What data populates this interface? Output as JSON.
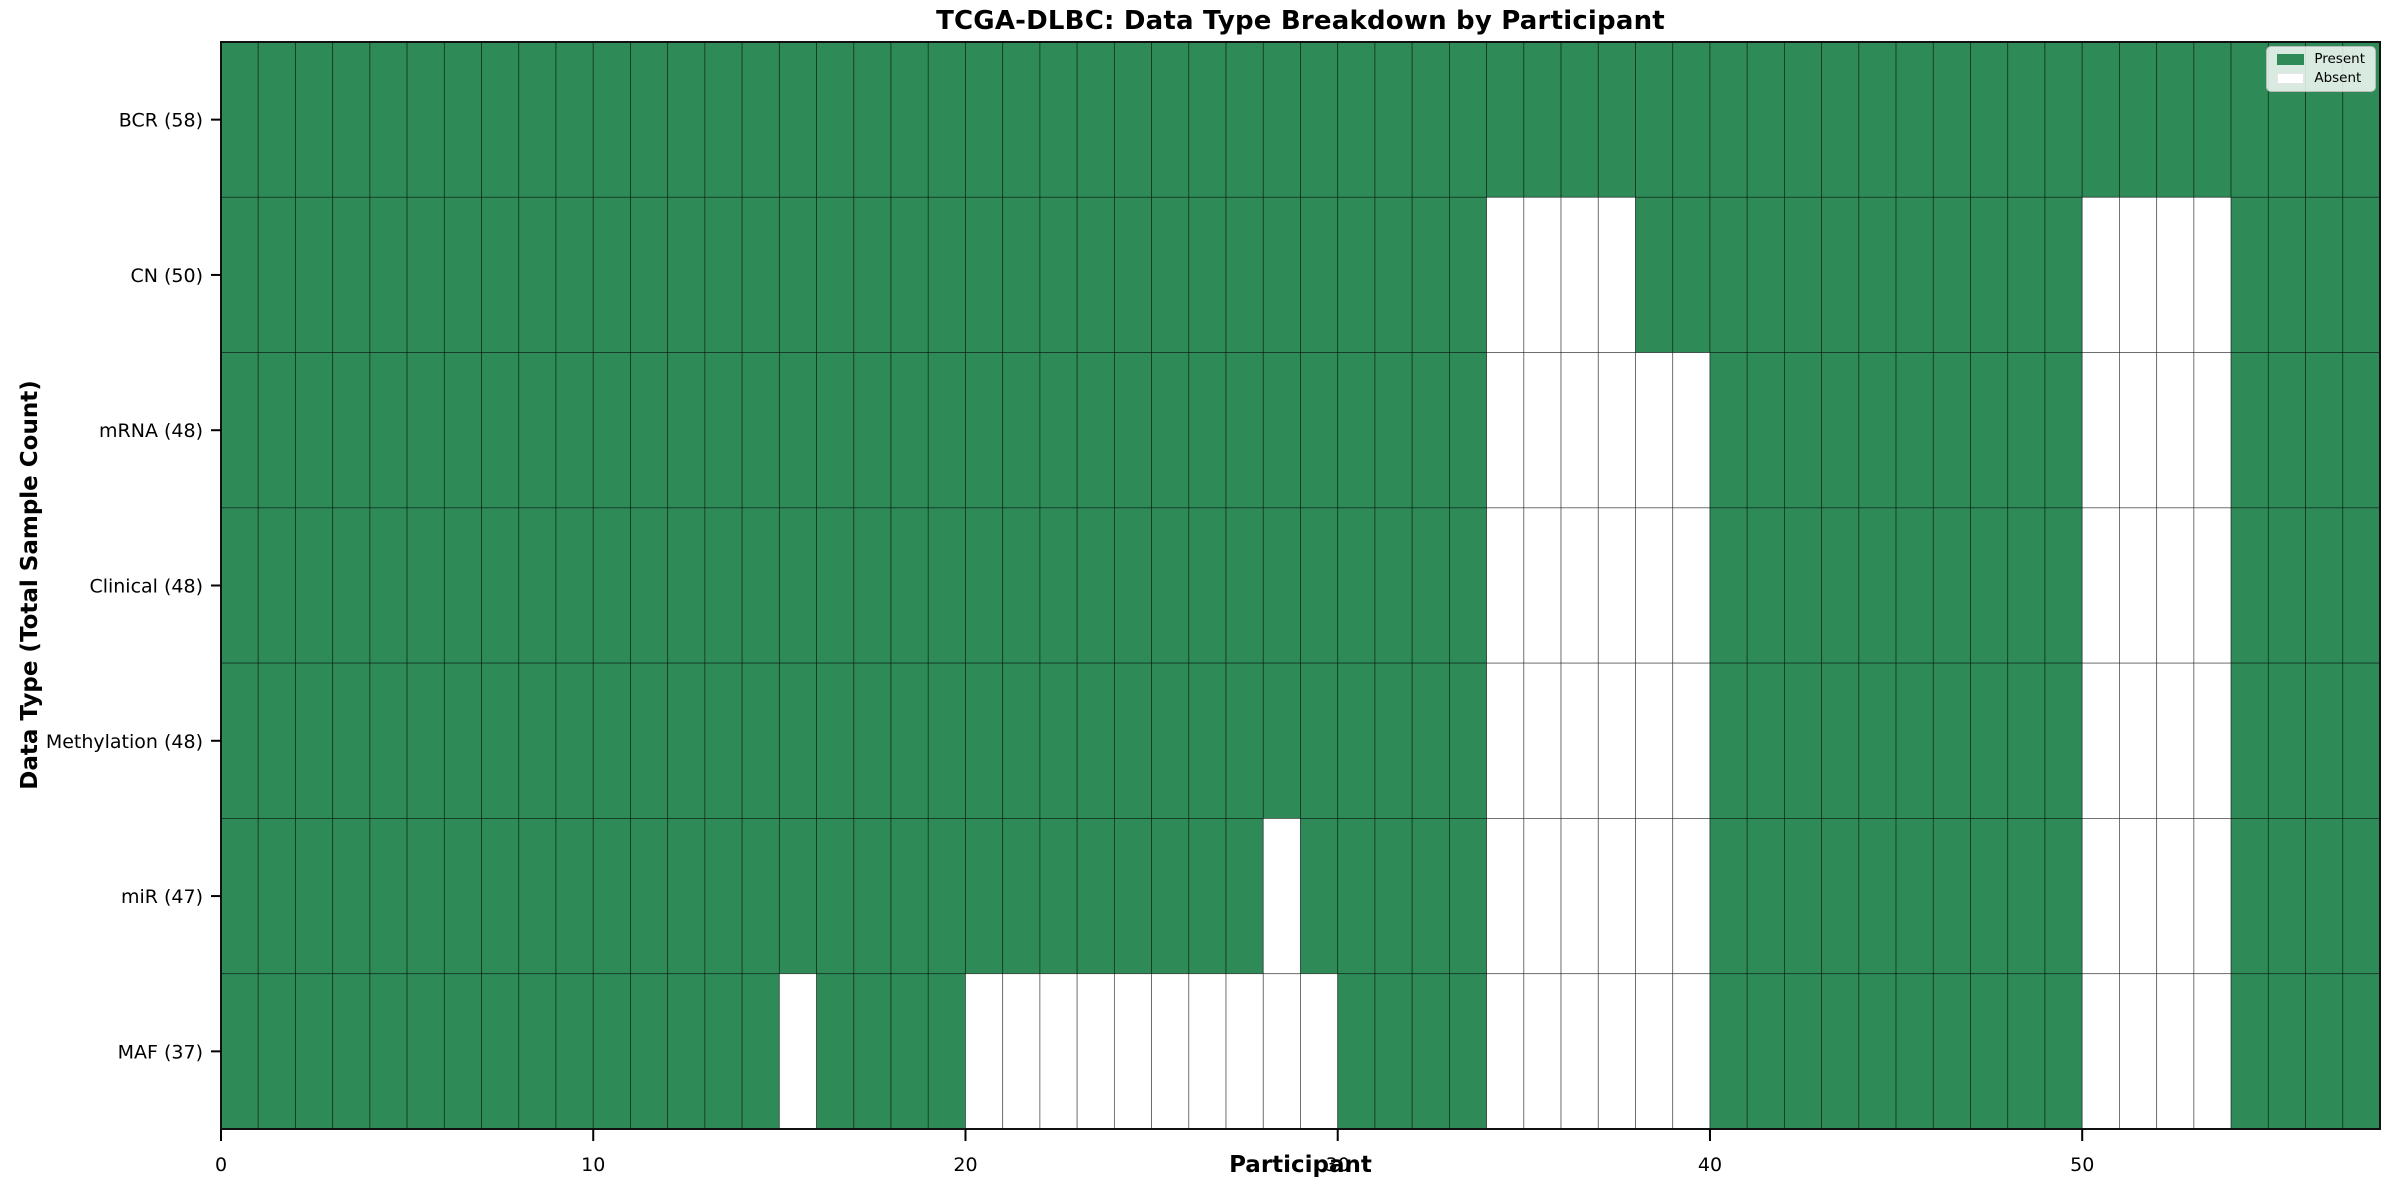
{
  "chart_data": {
    "type": "heatmap",
    "title": "TCGA-DLBC: Data Type Breakdown by Participant",
    "xlabel": "Participant",
    "ylabel": "Data Type (Total Sample Count)",
    "n_participants": 58,
    "xlim": [
      0,
      58
    ],
    "x_ticks": [
      0,
      10,
      20,
      30,
      40,
      50
    ],
    "grid": false,
    "cell_edges": true,
    "rows": [
      {
        "label": "BCR (58)",
        "total": 58,
        "absent": []
      },
      {
        "label": "CN (50)",
        "total": 50,
        "absent": [
          34,
          35,
          36,
          37,
          50,
          51,
          52,
          53
        ]
      },
      {
        "label": "mRNA (48)",
        "total": 48,
        "absent": [
          34,
          35,
          36,
          37,
          38,
          39,
          50,
          51,
          52,
          53
        ]
      },
      {
        "label": "Clinical (48)",
        "total": 48,
        "absent": [
          34,
          35,
          36,
          37,
          38,
          39,
          50,
          51,
          52,
          53
        ]
      },
      {
        "label": "Methylation (48)",
        "total": 48,
        "absent": [
          34,
          35,
          36,
          37,
          38,
          39,
          50,
          51,
          52,
          53
        ]
      },
      {
        "label": "miR (47)",
        "total": 47,
        "absent": [
          28,
          34,
          35,
          36,
          37,
          38,
          39,
          50,
          51,
          52,
          53
        ]
      },
      {
        "label": "MAF (37)",
        "total": 37,
        "absent": [
          15,
          20,
          21,
          22,
          23,
          24,
          25,
          26,
          27,
          28,
          29,
          34,
          35,
          36,
          37,
          38,
          39,
          50,
          51,
          52,
          53
        ]
      }
    ],
    "legend": {
      "position": "upper right",
      "entries": [
        {
          "label": "Present",
          "color": "#2e8b57"
        },
        {
          "label": "Absent",
          "color": "#ffffff"
        }
      ]
    },
    "colors": {
      "present": "#2e8b57",
      "absent": "#ffffff",
      "cell_edge": "rgba(0,0,0,0.55)",
      "spine": "#111111",
      "tick": "#000000",
      "text": "#000000"
    }
  }
}
